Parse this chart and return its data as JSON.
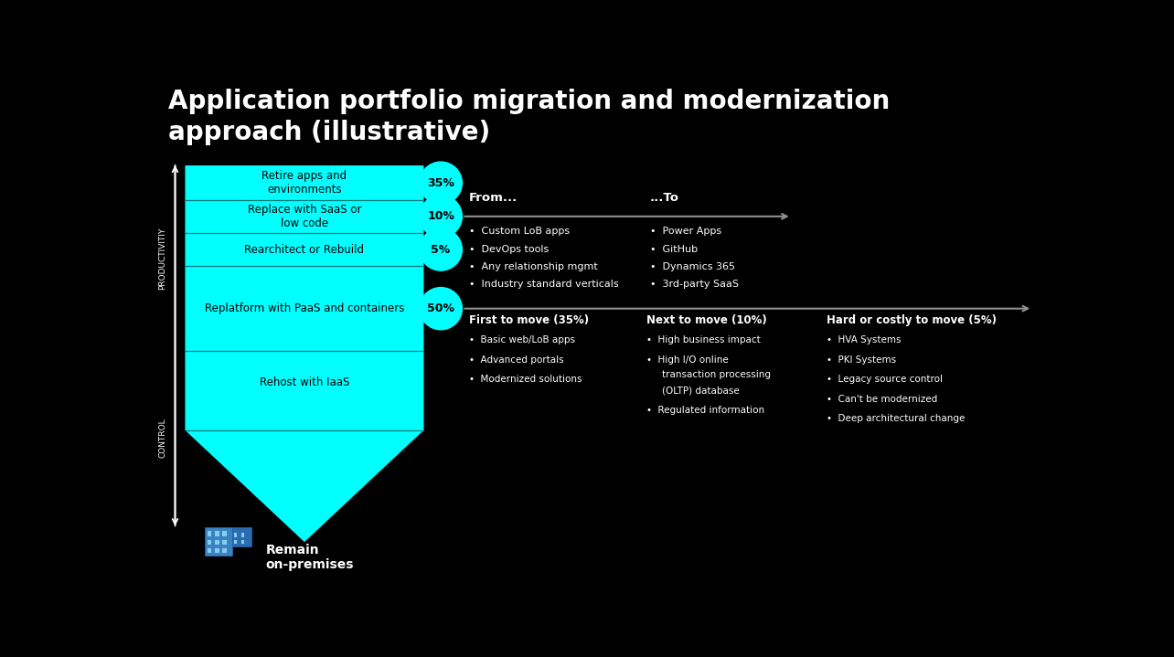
{
  "title": "Application portfolio migration and modernization\napproach (illustrative)",
  "bg_color": "#000000",
  "cyan_color": "#00FFFF",
  "dark_text": "#000000",
  "white_text": "#FFFFFF",
  "gray_arrow": "#909090",
  "funnel_labels": [
    "Retire apps and\nenvironments",
    "Replace with SaaS or\nlow code",
    "Rearchitect or Rebuild",
    "Replatform with PaaS and containers",
    "Rehost with IaaS"
  ],
  "circle_labels": [
    "35%",
    "10%",
    "5%",
    "50%"
  ],
  "productivity_label": "PRODUCTIVITIY",
  "control_label": "CONTROL",
  "remain_label": "Remain\non-premises",
  "arrow_top_label_from": "From...",
  "arrow_top_label_to": "...To",
  "from_items": [
    "Custom LoB apps",
    "DevOps tools",
    "Any relationship mgmt",
    "Industry standard verticals"
  ],
  "to_items": [
    "Power Apps",
    "GitHub",
    "Dynamics 365",
    "3rd-party SaaS"
  ],
  "col1_title": "First to move (35%)",
  "col2_title": "Next to move (10%)",
  "col3_title": "Hard or costly to move (5%)",
  "col1_items": [
    "Basic web/LoB apps",
    "Advanced portals",
    "Modernized solutions"
  ],
  "col2_items": [
    "High business impact",
    "High I/O online\ntransaction processing\n(OLTP) database",
    "Regulated information"
  ],
  "col3_items": [
    "HVA Systems",
    "PKI Systems",
    "Legacy source control",
    "Can't be modernized",
    "Deep architectural change"
  ]
}
